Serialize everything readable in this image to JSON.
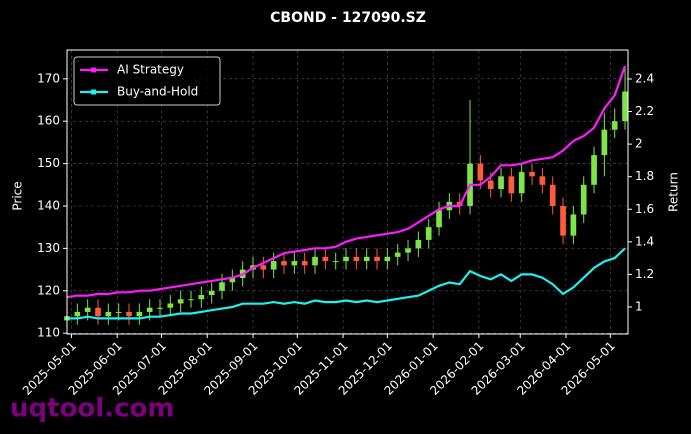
{
  "chart_data": {
    "type": "candlestick",
    "title": "CBOND - 127090.SZ",
    "ylabel": "Price",
    "y2label": "Return",
    "watermark": "uqtool.com",
    "x": [
      "2025-04-28",
      "2025-05-05",
      "2025-05-12",
      "2025-05-19",
      "2025-05-26",
      "2025-06-02",
      "2025-06-09",
      "2025-06-16",
      "2025-06-23",
      "2025-06-30",
      "2025-07-07",
      "2025-07-14",
      "2025-07-21",
      "2025-07-28",
      "2025-08-04",
      "2025-08-11",
      "2025-08-18",
      "2025-08-25",
      "2025-09-01",
      "2025-09-08",
      "2025-09-15",
      "2025-09-22",
      "2025-09-29",
      "2025-10-06",
      "2025-10-13",
      "2025-10-20",
      "2025-10-27",
      "2025-11-03",
      "2025-11-10",
      "2025-11-17",
      "2025-11-24",
      "2025-12-01",
      "2025-12-08",
      "2025-12-15",
      "2025-12-22",
      "2025-12-29",
      "2026-01-05",
      "2026-01-12",
      "2026-01-19",
      "2026-01-26",
      "2026-02-02",
      "2026-02-09",
      "2026-02-16",
      "2026-02-23",
      "2026-03-02",
      "2026-03-09",
      "2026-03-16",
      "2026-03-23",
      "2026-03-30",
      "2026-04-06",
      "2026-04-13",
      "2026-04-20",
      "2026-04-27",
      "2026-05-04",
      "2026-05-11"
    ],
    "open": [
      113,
      114,
      115,
      116,
      114,
      115,
      115,
      114,
      115,
      116,
      116,
      117,
      118,
      118,
      119,
      120,
      122,
      123,
      125,
      126,
      125,
      127,
      126,
      127,
      126,
      128,
      127,
      127,
      128,
      127,
      128,
      127,
      128,
      129,
      130,
      132,
      135,
      139,
      141,
      140,
      150,
      146,
      144,
      147,
      143,
      148,
      147,
      145,
      140,
      133,
      138,
      145,
      152,
      158,
      160
    ],
    "high": [
      116,
      117,
      118,
      118,
      117,
      117,
      117,
      117,
      118,
      118,
      119,
      120,
      120,
      121,
      122,
      124,
      125,
      127,
      128,
      128,
      129,
      129,
      129,
      129,
      130,
      130,
      129,
      130,
      130,
      130,
      130,
      130,
      131,
      132,
      134,
      137,
      141,
      143,
      143,
      165,
      152,
      148,
      149,
      149,
      150,
      150,
      149,
      147,
      142,
      140,
      147,
      154,
      162,
      163,
      173
    ],
    "low": [
      111,
      112,
      113,
      112,
      112,
      113,
      112,
      112,
      113,
      114,
      114,
      115,
      116,
      116,
      117,
      118,
      120,
      121,
      123,
      123,
      123,
      124,
      124,
      124,
      124,
      125,
      125,
      125,
      125,
      125,
      125,
      125,
      126,
      127,
      128,
      130,
      133,
      137,
      138,
      138,
      144,
      142,
      142,
      141,
      141,
      145,
      143,
      138,
      131,
      131,
      136,
      143,
      147,
      156,
      158
    ],
    "close": [
      114,
      115,
      116,
      114,
      115,
      115,
      114,
      115,
      116,
      116,
      117,
      118,
      118,
      119,
      120,
      122,
      123,
      125,
      126,
      125,
      127,
      126,
      127,
      126,
      128,
      127,
      127,
      128,
      127,
      128,
      127,
      128,
      129,
      130,
      132,
      135,
      139,
      141,
      140,
      150,
      146,
      144,
      147,
      143,
      148,
      147,
      145,
      140,
      133,
      138,
      145,
      152,
      158,
      160,
      167
    ],
    "up_color": "#7fe34a",
    "down_color": "#ff5a3c",
    "series": [
      {
        "name": "AI Strategy",
        "color": "#ff1aff",
        "axis": "y2",
        "values": [
          1.06,
          1.07,
          1.07,
          1.08,
          1.08,
          1.09,
          1.09,
          1.1,
          1.1,
          1.11,
          1.12,
          1.13,
          1.14,
          1.15,
          1.16,
          1.17,
          1.18,
          1.2,
          1.24,
          1.27,
          1.3,
          1.33,
          1.34,
          1.35,
          1.36,
          1.36,
          1.37,
          1.4,
          1.42,
          1.43,
          1.44,
          1.45,
          1.46,
          1.48,
          1.52,
          1.56,
          1.6,
          1.62,
          1.62,
          1.75,
          1.75,
          1.8,
          1.87,
          1.87,
          1.88,
          1.9,
          1.91,
          1.92,
          1.96,
          2.02,
          2.05,
          2.1,
          2.22,
          2.3,
          2.48
        ]
      },
      {
        "name": "Buy-and-Hold",
        "color": "#1ff0f0",
        "axis": "y2",
        "values": [
          0.93,
          0.93,
          0.94,
          0.93,
          0.93,
          0.93,
          0.93,
          0.93,
          0.94,
          0.94,
          0.95,
          0.96,
          0.96,
          0.97,
          0.98,
          0.99,
          1.0,
          1.02,
          1.02,
          1.02,
          1.03,
          1.02,
          1.03,
          1.02,
          1.04,
          1.03,
          1.03,
          1.04,
          1.03,
          1.04,
          1.03,
          1.04,
          1.05,
          1.06,
          1.07,
          1.1,
          1.13,
          1.15,
          1.14,
          1.22,
          1.19,
          1.17,
          1.2,
          1.16,
          1.2,
          1.2,
          1.18,
          1.14,
          1.08,
          1.12,
          1.18,
          1.24,
          1.28,
          1.3,
          1.36
        ]
      }
    ],
    "xlim": [
      "2025-04-28",
      "2026-05-13"
    ],
    "xticks": [
      "2025-05-01",
      "2025-06-01",
      "2025-07-01",
      "2025-08-01",
      "2025-09-01",
      "2025-10-01",
      "2025-11-01",
      "2025-12-01",
      "2026-01-01",
      "2026-02-01",
      "2026-03-01",
      "2026-04-01",
      "2026-05-01"
    ],
    "ylim": [
      109.8,
      176.8
    ],
    "yticks": [
      110,
      120,
      130,
      140,
      150,
      160,
      170
    ],
    "y2lim": [
      0.834,
      2.578
    ],
    "y2ticks": [
      1.0,
      1.2,
      1.4,
      1.6,
      1.8,
      2.0,
      2.2,
      2.4
    ],
    "grid": true,
    "legend": "upper left"
  }
}
